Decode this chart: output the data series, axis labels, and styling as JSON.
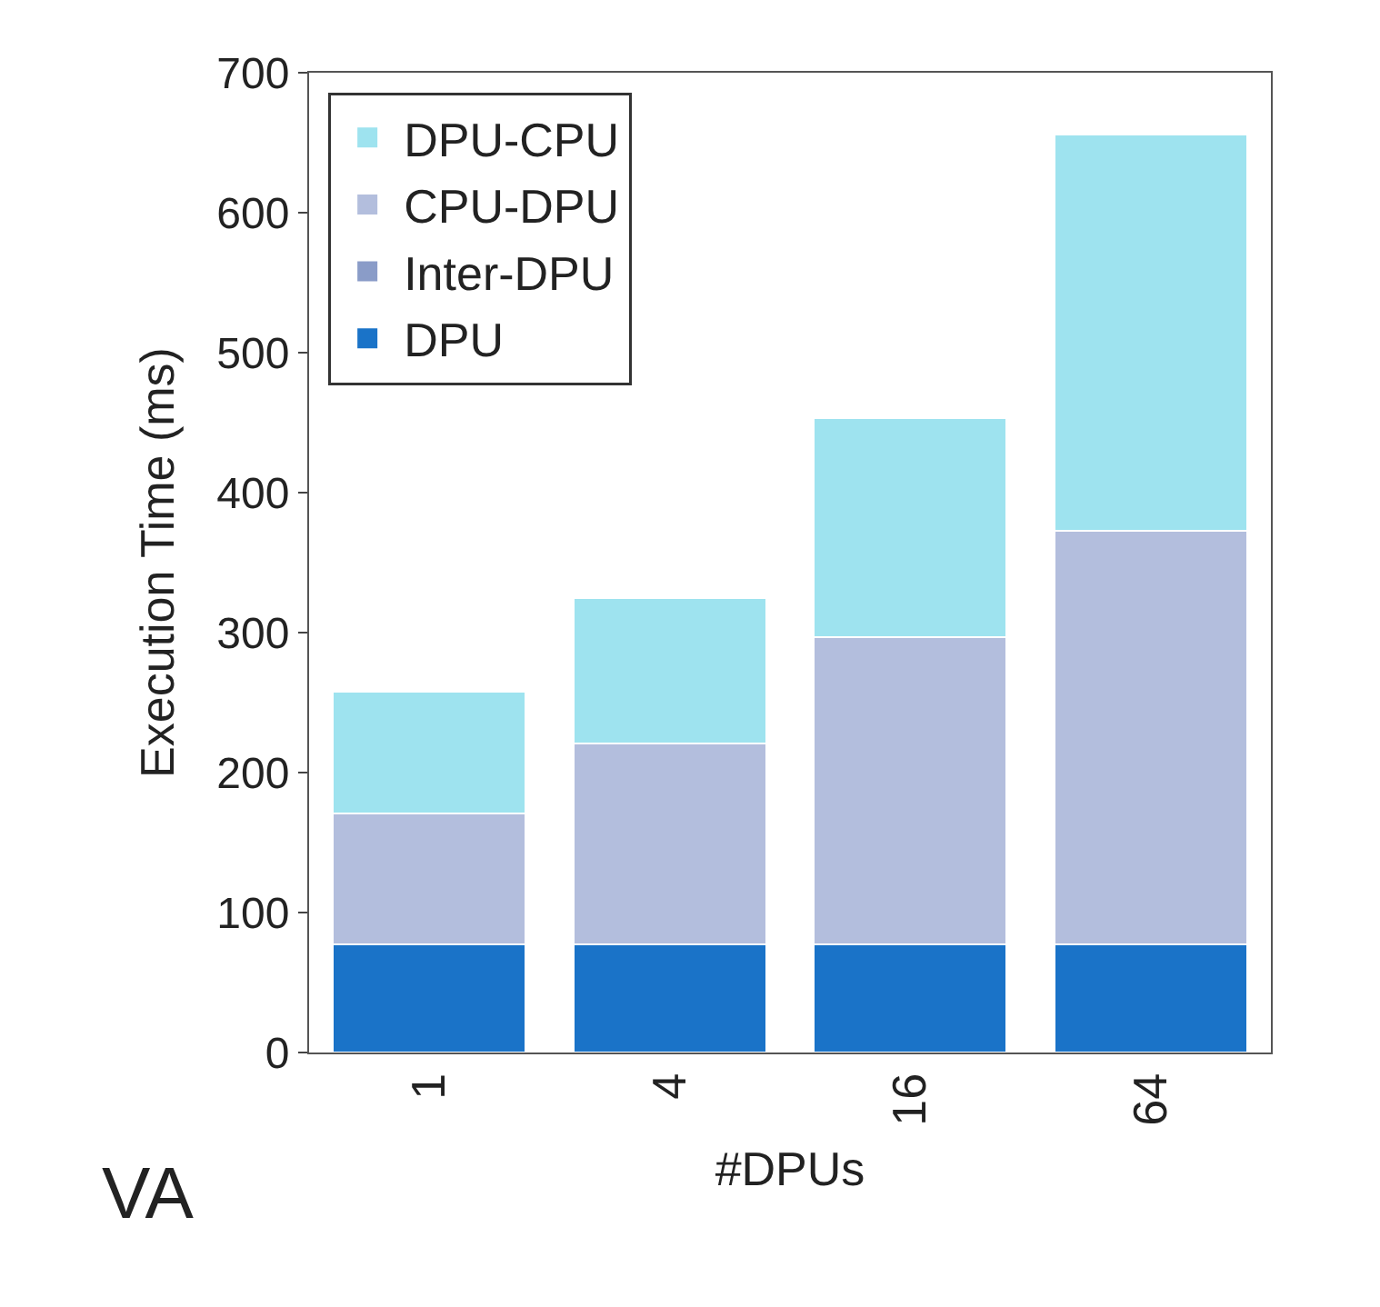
{
  "chart_data": {
    "type": "bar",
    "stacked": true,
    "xlabel": "#DPUs",
    "ylabel": "Execution Time (ms)",
    "categories": [
      "1",
      "4",
      "16",
      "64"
    ],
    "series": [
      {
        "name": "DPU",
        "color": "#1a73c8",
        "values": [
          77,
          77,
          77,
          77
        ]
      },
      {
        "name": "Inter-DPU",
        "color": "#8a9cc8",
        "values": [
          0,
          0,
          0,
          0
        ]
      },
      {
        "name": "CPU-DPU",
        "color": "#b3bedd",
        "values": [
          94,
          144,
          220,
          296
        ]
      },
      {
        "name": "DPU-CPU",
        "color": "#9ee3ef",
        "values": [
          87,
          104,
          156,
          283
        ]
      }
    ],
    "ylim": [
      0,
      700
    ],
    "yticks": [
      0,
      100,
      200,
      300,
      400,
      500,
      600,
      700
    ],
    "annotations": [
      "VA"
    ],
    "legend": "top left"
  }
}
